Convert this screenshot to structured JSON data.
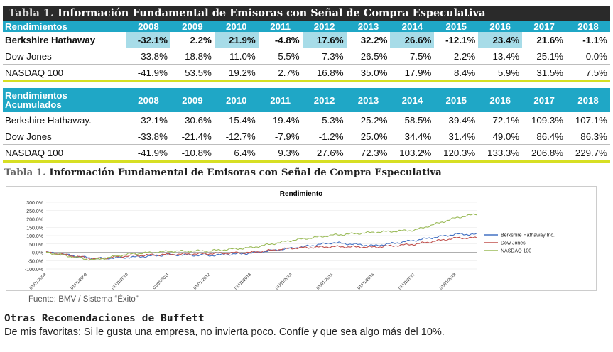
{
  "title": {
    "number": "Tabla 1.",
    "text": "Información Fundamental de Emisoras con Señal de Compra Especulativa"
  },
  "years": [
    "2008",
    "2009",
    "2010",
    "2011",
    "2012",
    "2013",
    "2014",
    "2015",
    "2016",
    "2017",
    "2018"
  ],
  "table1": {
    "header_label": "Rendimientos",
    "rows": [
      {
        "name": "Berkshire Hathaway",
        "values": [
          "-32.1%",
          "2.2%",
          "21.9%",
          "-4.8%",
          "17.6%",
          "32.2%",
          "26.6%",
          "-12.1%",
          "23.4%",
          "21.6%",
          "-1.1%"
        ]
      },
      {
        "name": "Dow Jones",
        "values": [
          "-33.8%",
          "18.8%",
          "11.0%",
          "5.5%",
          "7.3%",
          "26.5%",
          "7.5%",
          "-2.2%",
          "13.4%",
          "25.1%",
          "0.0%"
        ]
      },
      {
        "name": "NASDAQ 100",
        "values": [
          "-41.9%",
          "53.5%",
          "19.2%",
          "2.7%",
          "16.8%",
          "35.0%",
          "17.9%",
          "8.4%",
          "5.9%",
          "31.5%",
          "7.5%"
        ]
      }
    ]
  },
  "table2": {
    "header_label": "Rendimientos Acumulados",
    "rows": [
      {
        "name": "Berkshire Hathaway.",
        "values": [
          "-32.1%",
          "-30.6%",
          "-15.4%",
          "-19.4%",
          "-5.3%",
          "25.2%",
          "58.5%",
          "39.4%",
          "72.1%",
          "109.3%",
          "107.1%"
        ]
      },
      {
        "name": "Dow Jones",
        "values": [
          "-33.8%",
          "-21.4%",
          "-12.7%",
          "-7.9%",
          "-1.2%",
          "25.0%",
          "34.4%",
          "31.4%",
          "49.0%",
          "86.4%",
          "86.3%"
        ]
      },
      {
        "name": "NASDAQ 100",
        "values": [
          "-41.9%",
          "-10.8%",
          "6.4%",
          "9.3%",
          "27.6%",
          "72.3%",
          "103.2%",
          "120.3%",
          "133.3%",
          "206.8%",
          "229.7%"
        ]
      }
    ]
  },
  "subtitle": {
    "number": "Tabla 1.",
    "text": "Información Fundamental de Emisoras con Señal de Compra Especulativa"
  },
  "chart_data": {
    "type": "line",
    "title": "Rendimiento",
    "xlabel": "",
    "ylabel": "",
    "ylim": [
      -100,
      300
    ],
    "yticks": [
      "300.0%",
      "250.0%",
      "200.0%",
      "150.0%",
      "100.0%",
      "50.0%",
      "0.0%",
      "-50.0%",
      "-100.0%"
    ],
    "x_ticks": [
      "01/01/2008",
      "01/01/2009",
      "01/01/2010",
      "01/01/2011",
      "01/01/2012",
      "01/01/2013",
      "01/01/2014",
      "01/01/2015",
      "01/01/2016",
      "01/01/2017",
      "01/01/2018"
    ],
    "x": [
      2008.0,
      2009.0,
      2009.2,
      2010.0,
      2011.0,
      2012.0,
      2013.0,
      2014.0,
      2015.0,
      2016.0,
      2017.0,
      2018.0,
      2018.5
    ],
    "legend_position": "right",
    "series": [
      {
        "name": "Berkshire Hathaway Inc.",
        "color": "#4472c4",
        "values": [
          0,
          -32,
          -38,
          -31,
          -15,
          -19,
          -5,
          25,
          58,
          39,
          72,
          109,
          107
        ]
      },
      {
        "name": "Dow Jones",
        "color": "#c0504d",
        "values": [
          0,
          -34,
          -40,
          -21,
          -13,
          -8,
          -1,
          25,
          34,
          31,
          49,
          86,
          86
        ]
      },
      {
        "name": "NASDAQ 100",
        "color": "#9bbb59",
        "values": [
          0,
          -42,
          -45,
          -11,
          6,
          9,
          28,
          72,
          103,
          120,
          133,
          207,
          230
        ]
      }
    ]
  },
  "source": "Fuente: BMV / Sistema “Éxito”",
  "section_title": "Otras Recomendaciones de Buffett",
  "body_text": "De mis favoritas: Si le gusta una empresa, no invierta poco. Confíe y que sea algo más del 10%."
}
